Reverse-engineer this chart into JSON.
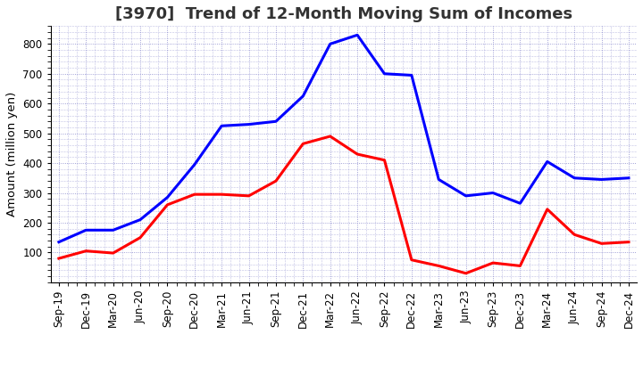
{
  "title": "[3970]  Trend of 12-Month Moving Sum of Incomes",
  "ylabel": "Amount (million yen)",
  "x_labels": [
    "Sep-19",
    "Dec-19",
    "Mar-20",
    "Jun-20",
    "Sep-20",
    "Dec-20",
    "Mar-21",
    "Jun-21",
    "Sep-21",
    "Dec-21",
    "Mar-22",
    "Jun-22",
    "Sep-22",
    "Dec-22",
    "Mar-23",
    "Jun-23",
    "Sep-23",
    "Dec-23",
    "Mar-24",
    "Jun-24",
    "Sep-24",
    "Dec-24"
  ],
  "ordinary_income": [
    135,
    175,
    175,
    210,
    285,
    395,
    525,
    530,
    540,
    625,
    800,
    830,
    700,
    695,
    345,
    290,
    300,
    265,
    405,
    350,
    345,
    350
  ],
  "net_income": [
    80,
    105,
    98,
    150,
    260,
    295,
    295,
    290,
    340,
    465,
    490,
    430,
    410,
    75,
    55,
    30,
    65,
    55,
    245,
    160,
    130,
    135
  ],
  "ordinary_color": "#0000ff",
  "net_color": "#ff0000",
  "background_color": "#ffffff",
  "plot_bg_color": "#ffffff",
  "grid_color": "#8888cc",
  "ylim_min": 0,
  "ylim_max": 860,
  "yticks": [
    100,
    200,
    300,
    400,
    500,
    600,
    700,
    800
  ],
  "line_width": 2.2,
  "title_fontsize": 13,
  "label_fontsize": 9.5,
  "tick_fontsize": 8.5,
  "legend_fontsize": 10
}
